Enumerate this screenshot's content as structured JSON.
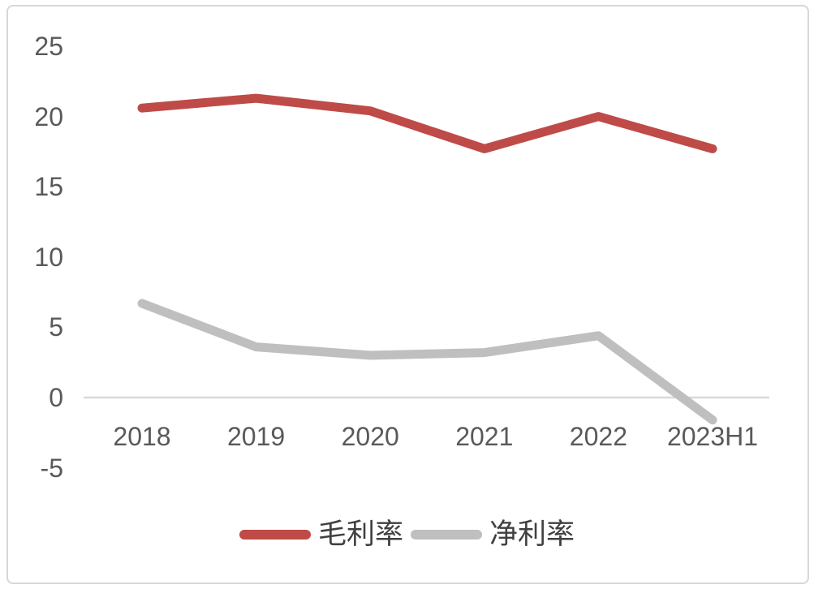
{
  "chart_data": {
    "type": "line",
    "categories": [
      "2018",
      "2019",
      "2020",
      "2021",
      "2022",
      "2023H1"
    ],
    "series": [
      {
        "name": "毛利率",
        "color": "#be4b47",
        "values": [
          20.6,
          21.3,
          20.4,
          17.7,
          20.0,
          17.7
        ]
      },
      {
        "name": "净利率",
        "color": "#bfbfbf",
        "values": [
          6.7,
          3.6,
          3.0,
          3.2,
          4.4,
          -1.6
        ]
      }
    ],
    "y_ticks": [
      25,
      20,
      15,
      10,
      5,
      0,
      -5
    ],
    "ylim": [
      -5,
      25
    ],
    "grid": "zero-line-only",
    "legend_position": "bottom-center",
    "colors": {
      "axis_text": "#595959",
      "legend_text": "#404040",
      "zero_line": "#d9d9d9",
      "frame_border": "#d7d7d7",
      "background": "#ffffff"
    }
  }
}
